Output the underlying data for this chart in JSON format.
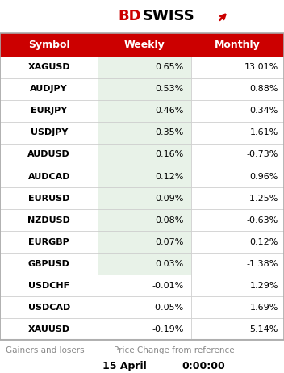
{
  "symbols": [
    "XAGUSD",
    "AUDJPY",
    "EURJPY",
    "USDJPY",
    "AUDUSD",
    "AUDCAD",
    "EURUSD",
    "NZDUSD",
    "EURGBP",
    "GBPUSD",
    "USDCHF",
    "USDCAD",
    "XAUUSD"
  ],
  "weekly": [
    "0.65%",
    "0.53%",
    "0.46%",
    "0.35%",
    "0.16%",
    "0.12%",
    "0.09%",
    "0.08%",
    "0.07%",
    "0.03%",
    "-0.01%",
    "-0.05%",
    "-0.19%"
  ],
  "monthly": [
    "13.01%",
    "0.88%",
    "0.34%",
    "1.61%",
    "-0.73%",
    "0.96%",
    "-1.25%",
    "-0.63%",
    "0.12%",
    "-1.38%",
    "1.29%",
    "1.69%",
    "5.14%"
  ],
  "weekly_vals": [
    0.65,
    0.53,
    0.46,
    0.35,
    0.16,
    0.12,
    0.09,
    0.08,
    0.07,
    0.03,
    -0.01,
    -0.05,
    -0.19
  ],
  "header_bg": "#CC0000",
  "header_text": "#FFFFFF",
  "positive_weekly_bg": "#E8F2E8",
  "negative_weekly_bg": "#FFFFFF",
  "row_border": "#CCCCCC",
  "symbol_bg": "#FFFFFF",
  "symbol_text": "#000000",
  "footer_text_color": "#888888",
  "footer_date": "15 April",
  "footer_time": "0:00:00",
  "footer_label": "Gainers and losers",
  "footer_desc": "Price Change from reference",
  "logo_bd": "#CC0000",
  "logo_swiss": "#000000",
  "outer_border": "#AAAAAA"
}
